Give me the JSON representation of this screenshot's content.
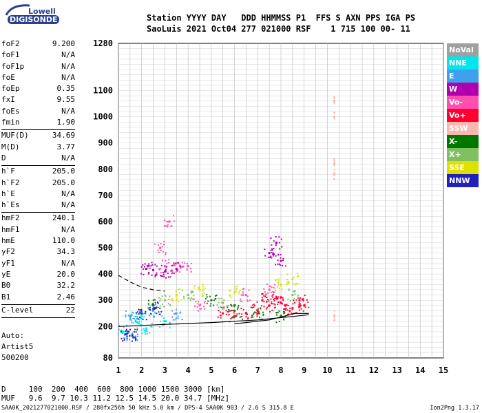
{
  "logo": {
    "line1": "Lowell",
    "line2": "DIGISONDE"
  },
  "header": {
    "line1": "Station YYYY DAY   DDD HHMMSS P1  FFS S AXN PPS IGA PS",
    "line2": "SaoLuis 2021 Oct04 277 021000 RSF    1 715 100 00- 11"
  },
  "params_group1": [
    {
      "label": "foF2",
      "value": "9.200"
    },
    {
      "label": "foF1",
      "value": "N/A"
    },
    {
      "label": "foF1p",
      "value": "N/A"
    },
    {
      "label": "foE",
      "value": "N/A"
    },
    {
      "label": "foEp",
      "value": "0.35"
    },
    {
      "label": "fxI",
      "value": "9.55"
    },
    {
      "label": "foEs",
      "value": "N/A"
    },
    {
      "label": "fmin",
      "value": "1.90"
    }
  ],
  "params_group2": [
    {
      "label": "MUF(D)",
      "value": "34.69"
    },
    {
      "label": "M(D)",
      "value": "3.77"
    },
    {
      "label": "D",
      "value": "N/A"
    }
  ],
  "params_group3": [
    {
      "label": "h`F",
      "value": "205.0"
    },
    {
      "label": "h`F2",
      "value": "205.0"
    },
    {
      "label": "h`E",
      "value": "N/A"
    },
    {
      "label": "h`Es",
      "value": "N/A"
    }
  ],
  "params_group4": [
    {
      "label": "hmF2",
      "value": "240.1"
    },
    {
      "label": "hmF1",
      "value": "N/A"
    },
    {
      "label": "hmE",
      "value": "110.0"
    },
    {
      "label": "yF2",
      "value": "34.3"
    },
    {
      "label": "yF1",
      "value": "N/A"
    },
    {
      "label": "yE",
      "value": "20.0"
    },
    {
      "label": "B0",
      "value": "32.2"
    },
    {
      "label": "B1",
      "value": "2.46"
    }
  ],
  "params_group5": [
    {
      "label": "C-level",
      "value": "22"
    }
  ],
  "auto_text": {
    "line1": "Auto:",
    "line2": "Artist5",
    "line3": "500200"
  },
  "legend": [
    {
      "label": "NoVal",
      "color": "#a0a0a0",
      "text_color": "#ffffff"
    },
    {
      "label": "NNE",
      "color": "#00e5ee",
      "text_color": "#ffffff"
    },
    {
      "label": "E",
      "color": "#3fa0ee",
      "text_color": "#ffffff"
    },
    {
      "label": "W",
      "color": "#b000b0",
      "text_color": "#ffffff"
    },
    {
      "label": "Vo-",
      "color": "#ff50b0",
      "text_color": "#ffffff"
    },
    {
      "label": "Vo+",
      "color": "#ff0030",
      "text_color": "#ffffff"
    },
    {
      "label": "SSW",
      "color": "#f8b8b0",
      "text_color": "#ffffff"
    },
    {
      "label": "X-",
      "color": "#007800",
      "text_color": "#ffffff"
    },
    {
      "label": "X+",
      "color": "#80c060",
      "text_color": "#ffffff"
    },
    {
      "label": "SSE",
      "color": "#e0e000",
      "text_color": "#ffffff"
    },
    {
      "label": "NNW",
      "color": "#2020c0",
      "text_color": "#ffffff"
    }
  ],
  "muf_table": {
    "d_row": "D     100  200  400  600  800 1000 1500 3000 [km]",
    "muf_row": "MUF   9.6  9.7 10.3 11.2 12.5 14.5 20.0 34.7 [MHz]"
  },
  "footer": "SAA0K_2021277021000.RSF / 280fx256h 50 kHz 5.0 km / DPS-4 SAA0K 903 / 2.6 S 315.8 E",
  "version": "Ion2Png 1.3.17",
  "chart_data": {
    "type": "scatter",
    "title": "",
    "xlabel": "",
    "ylabel": "",
    "xlim": [
      1,
      15
    ],
    "ylim": [
      80,
      1280
    ],
    "xticks": [
      1,
      2,
      3,
      4,
      5,
      6,
      7,
      8,
      9,
      10,
      11,
      12,
      13,
      14,
      15
    ],
    "yticks": [
      80,
      200,
      300,
      400,
      500,
      600,
      700,
      800,
      900,
      1000,
      1100,
      1280
    ],
    "grid": true,
    "legend_position": "right",
    "series": [
      {
        "name": "Vo+",
        "color": "#ff0030",
        "points": [
          [
            6.5,
            250
          ],
          [
            7,
            260
          ],
          [
            7.5,
            280
          ],
          [
            8,
            290
          ],
          [
            8.5,
            270
          ],
          [
            6,
            240
          ],
          [
            7.2,
            300
          ],
          [
            7.8,
            310
          ],
          [
            8.2,
            280
          ],
          [
            5.5,
            250
          ],
          [
            9,
            280
          ],
          [
            8.8,
            300
          ]
        ]
      },
      {
        "name": "Vo-",
        "color": "#ff50b0",
        "points": [
          [
            3,
            430
          ],
          [
            3.5,
            420
          ],
          [
            4,
            430
          ],
          [
            4.5,
            280
          ],
          [
            6.5,
            320
          ],
          [
            7.5,
            340
          ],
          [
            2.8,
            500
          ],
          [
            3.2,
            600
          ]
        ]
      },
      {
        "name": "W",
        "color": "#b000b0",
        "points": [
          [
            2.2,
            420
          ],
          [
            2.5,
            415
          ],
          [
            3,
            410
          ],
          [
            3.5,
            420
          ],
          [
            7.5,
            480
          ],
          [
            7.8,
            520
          ],
          [
            8,
            450
          ]
        ]
      },
      {
        "name": "X-",
        "color": "#007800",
        "points": [
          [
            2.5,
            280
          ],
          [
            5,
            300
          ],
          [
            6,
            260
          ],
          [
            7,
            250
          ],
          [
            8,
            240
          ]
        ]
      },
      {
        "name": "X+",
        "color": "#80c060",
        "points": [
          [
            3,
            300
          ],
          [
            4,
            320
          ],
          [
            5.5,
            290
          ],
          [
            8.5,
            320
          ]
        ]
      },
      {
        "name": "SSE",
        "color": "#e0e000",
        "points": [
          [
            3.5,
            320
          ],
          [
            4.5,
            340
          ],
          [
            6,
            330
          ],
          [
            8,
            360
          ],
          [
            8.5,
            380
          ]
        ]
      },
      {
        "name": "NNE",
        "color": "#00e5ee",
        "points": [
          [
            1.8,
            230
          ],
          [
            2,
            240
          ],
          [
            3,
            220
          ],
          [
            1.2,
            180
          ],
          [
            2.2,
            190
          ]
        ]
      },
      {
        "name": "E",
        "color": "#3fa0ee",
        "points": [
          [
            1.5,
            240
          ],
          [
            2.5,
            260
          ],
          [
            3.5,
            250
          ],
          [
            1.6,
            170
          ]
        ]
      },
      {
        "name": "NNW",
        "color": "#2020c0",
        "points": [
          [
            1.3,
            170
          ],
          [
            1.6,
            165
          ],
          [
            2,
            250
          ],
          [
            2.6,
            270
          ]
        ]
      },
      {
        "name": "SSW",
        "color": "#f8b8b0",
        "points": [
          [
            10.3,
            1000
          ],
          [
            10.3,
            1060
          ],
          [
            10.3,
            780
          ],
          [
            10.3,
            820
          ],
          [
            10.3,
            240
          ]
        ]
      }
    ],
    "traces": [
      {
        "name": "virtual height profile",
        "style": "solid",
        "points": [
          [
            1,
            200
          ],
          [
            3,
            208
          ],
          [
            5,
            215
          ],
          [
            7,
            225
          ],
          [
            8.5,
            238
          ],
          [
            9.2,
            245
          ]
        ]
      },
      {
        "name": "estimated profile",
        "style": "dashed",
        "points": [
          [
            1,
            395
          ],
          [
            1.5,
            370
          ],
          [
            2,
            350
          ],
          [
            2.5,
            340
          ],
          [
            3,
            335
          ]
        ]
      },
      {
        "name": "profile lower",
        "style": "solid",
        "points": [
          [
            6,
            210
          ],
          [
            7.5,
            225
          ],
          [
            8.6,
            250
          ],
          [
            9.2,
            250
          ]
        ]
      }
    ]
  }
}
